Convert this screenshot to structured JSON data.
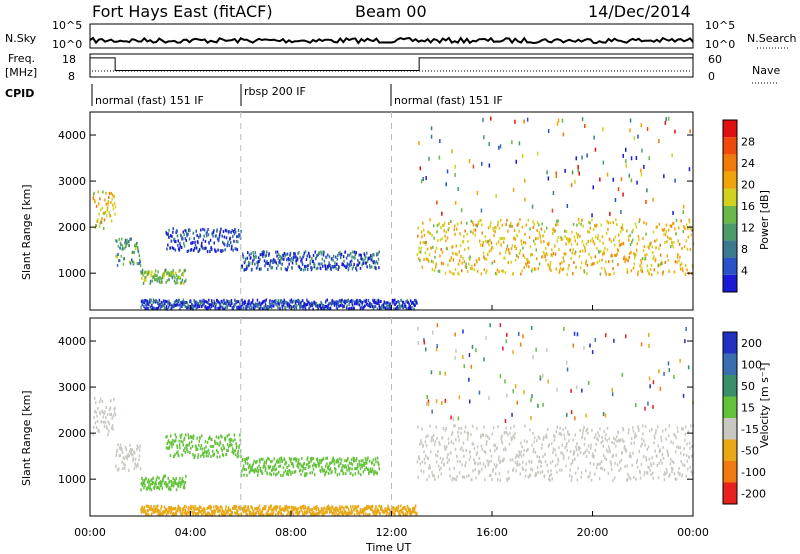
{
  "header": {
    "station": "Fort Hays East (fitACF)",
    "beam": "Beam 00",
    "date": "14/Dec/2014"
  },
  "noise_panel": {
    "left_label": "N.Sky",
    "right_label": "N.Search",
    "left_ticks": [
      "10^5",
      "10^0"
    ],
    "right_ticks": [
      "10^5",
      "10^0"
    ]
  },
  "freq_panel": {
    "left_label_1": "Freq.",
    "left_label_2": "[MHz]",
    "right_label": "Nave",
    "left_ticks": [
      "18",
      "8"
    ],
    "right_ticks": [
      "60",
      "0"
    ],
    "freq_mhz": [
      {
        "t": 0,
        "f": 17.5
      },
      {
        "t": 1.0,
        "f": 10.5
      },
      {
        "t": 13.1,
        "f": 17.5
      },
      {
        "t": 24,
        "f": 17.5
      }
    ]
  },
  "cpid": {
    "label": "CPID",
    "segments": [
      {
        "start": 0,
        "end": 6,
        "text": "normal (fast) 151 IF"
      },
      {
        "start": 6,
        "end": 12,
        "text": "rbsp 200 IF"
      },
      {
        "start": 12,
        "end": 24,
        "text": "normal (fast) 151 IF"
      }
    ]
  },
  "x_axis": {
    "label": "Time UT",
    "ticks": [
      "00:00",
      "04:00",
      "08:00",
      "12:00",
      "16:00",
      "20:00",
      "00:00"
    ]
  },
  "y_axis": {
    "label": "Slant Range [km]",
    "ticks": [
      "1000",
      "2000",
      "3000",
      "4000"
    ]
  },
  "power_scale": {
    "label": "Power [dB]",
    "ticks": [
      "4",
      "8",
      "12",
      "16",
      "20",
      "24",
      "28"
    ],
    "colors": [
      "#1a1ad6",
      "#2a52c8",
      "#3a7a8e",
      "#4a9a6a",
      "#6bb84a",
      "#d2d21e",
      "#f0a30a",
      "#f07a0a",
      "#ef4a0a",
      "#e01010"
    ]
  },
  "velocity_scale": {
    "label": "Velocity [m s⁻¹]",
    "ticks": [
      "200",
      "100",
      "50",
      "15",
      "-15",
      "-50",
      "-100",
      "-200"
    ],
    "colors": [
      "#2030c0",
      "#3a6eb0",
      "#3a8e6a",
      "#62c23a",
      "#c8c8c0",
      "#e8a818",
      "#f07a10",
      "#e82020"
    ]
  },
  "chart_data": {
    "type": "heatmap",
    "x_range_hours": [
      0,
      24
    ],
    "y_range_km": [
      200,
      4500
    ],
    "panels": [
      {
        "name": "Power",
        "units": "dB",
        "regions": [
          {
            "t0": 0.1,
            "t1": 1.0,
            "r0": 2000,
            "r1": 2800,
            "value": 20
          },
          {
            "t0": 1.0,
            "t1": 2.0,
            "r0": 1200,
            "r1": 1800,
            "value": 12
          },
          {
            "t0": 2.0,
            "t1": 3.8,
            "r0": 800,
            "r1": 1100,
            "value": 14
          },
          {
            "t0": 3.0,
            "t1": 6.0,
            "r0": 1500,
            "r1": 2000,
            "value": 6
          },
          {
            "t0": 6.0,
            "t1": 11.5,
            "r0": 1100,
            "r1": 1500,
            "value": 7
          },
          {
            "t0": 2.0,
            "t1": 13.0,
            "r0": 250,
            "r1": 450,
            "value": 6
          },
          {
            "t0": 13.0,
            "t1": 24.0,
            "r0": 1000,
            "r1": 2200,
            "value": 20
          }
        ]
      },
      {
        "name": "Velocity",
        "units": "m/s",
        "regions": [
          {
            "t0": 0.1,
            "t1": 1.0,
            "r0": 2000,
            "r1": 2800,
            "value": 0
          },
          {
            "t0": 1.0,
            "t1": 2.0,
            "r0": 1200,
            "r1": 1800,
            "value": 0
          },
          {
            "t0": 2.0,
            "t1": 3.8,
            "r0": 800,
            "r1": 1100,
            "value": 50
          },
          {
            "t0": 3.0,
            "t1": 6.0,
            "r0": 1500,
            "r1": 2000,
            "value": 50
          },
          {
            "t0": 6.0,
            "t1": 11.5,
            "r0": 1100,
            "r1": 1500,
            "value": 50
          },
          {
            "t0": 2.0,
            "t1": 13.0,
            "r0": 250,
            "r1": 450,
            "value": -50
          },
          {
            "t0": 13.0,
            "t1": 24.0,
            "r0": 1000,
            "r1": 2200,
            "value": 0
          }
        ]
      }
    ]
  }
}
